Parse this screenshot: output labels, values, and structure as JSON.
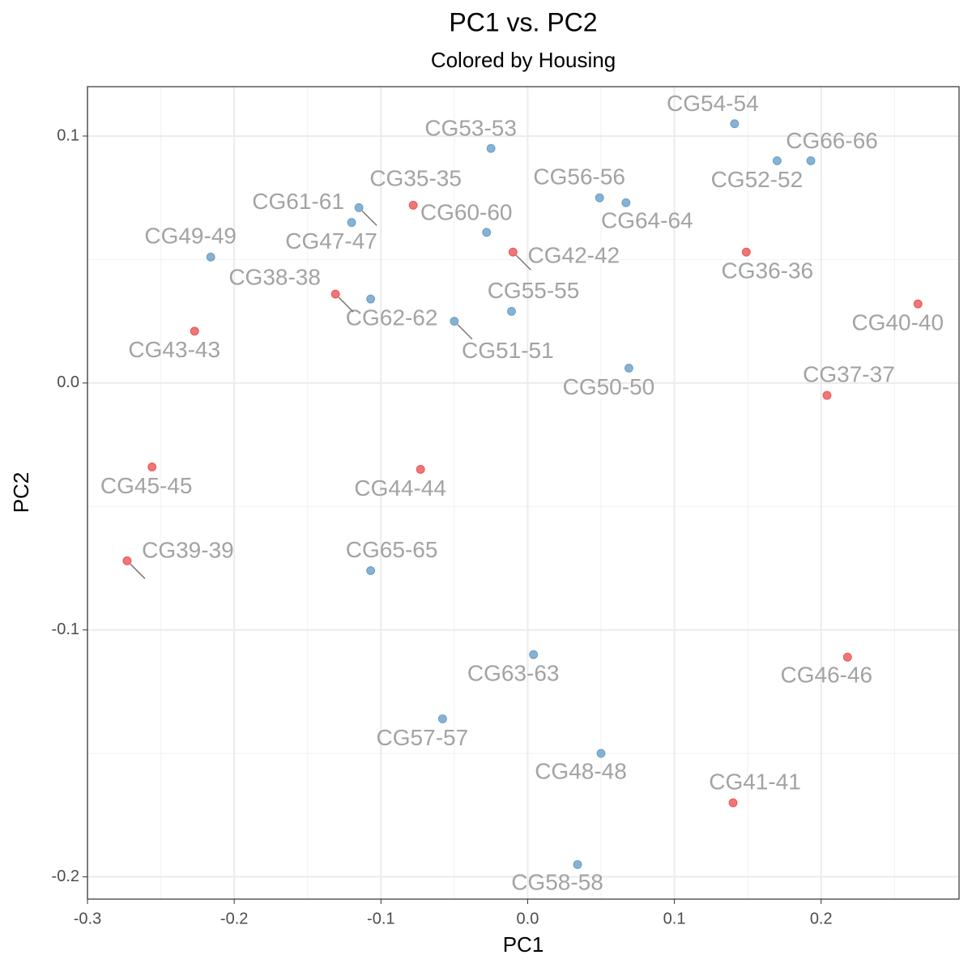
{
  "chart_data": {
    "type": "scatter",
    "title": "PC1 vs. PC2",
    "subtitle": "Colored by Housing",
    "x_label": "PC1",
    "y_label": "PC2",
    "xlim": [
      -0.3,
      0.294
    ],
    "ylim": [
      -0.209,
      0.12
    ],
    "xticks": [
      -0.3,
      -0.2,
      -0.1,
      {
        "value": 0,
        "label": "0.0"
      },
      0.1,
      0.2
    ],
    "yticks": [
      -0.2,
      -0.1,
      {
        "value": 0,
        "label": "0.0"
      },
      0.1
    ],
    "grid": true,
    "series": [
      {
        "color": "#377eb8",
        "labels": [
          "CG54-54",
          "CG66-66",
          "CG52-52",
          "CG53-53",
          "CG56-56",
          "CG64-64",
          "CG61-61",
          "CG47-47",
          "CG60-60",
          "CG49-49",
          "CG62-62",
          "CG55-55",
          "CG51-51",
          "CG50-50",
          "CG65-65",
          "CG63-63",
          "CG57-57",
          "CG48-48",
          "CG58-58"
        ],
        "x": [
          0.141,
          0.193,
          0.17,
          -0.025,
          0.049,
          0.067,
          -0.115,
          -0.12,
          -0.028,
          -0.216,
          -0.107,
          -0.011,
          -0.05,
          0.069,
          -0.107,
          0.004,
          -0.058,
          0.05,
          0.034
        ],
        "values": [
          0.105,
          0.09,
          0.09,
          0.095,
          0.075,
          0.073,
          0.071,
          0.065,
          0.061,
          0.051,
          0.034,
          0.029,
          0.025,
          0.006,
          -0.076,
          -0.11,
          -0.136,
          -0.15,
          -0.195
        ]
      },
      {
        "color": "#e41a1c",
        "labels": [
          "CG35-35",
          "CG42-42",
          "CG36-36",
          "CG38-38",
          "CG40-40",
          "CG43-43",
          "CG37-37",
          "CG45-45",
          "CG44-44",
          "CG39-39",
          "CG46-46",
          "CG41-41"
        ],
        "x": [
          -0.078,
          -0.01,
          0.149,
          -0.131,
          0.266,
          -0.227,
          0.204,
          -0.256,
          -0.073,
          -0.273,
          0.218,
          0.14
        ],
        "values": [
          0.072,
          0.053,
          0.053,
          0.036,
          0.032,
          0.021,
          -0.005,
          -0.034,
          -0.035,
          -0.072,
          -0.111,
          -0.17
        ]
      }
    ]
  }
}
